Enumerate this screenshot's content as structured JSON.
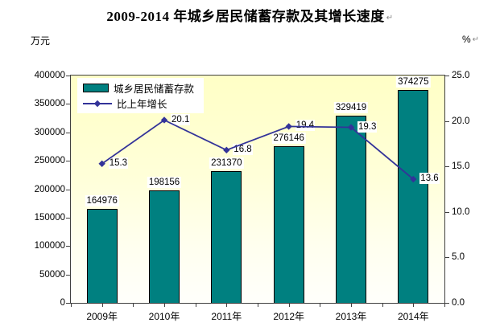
{
  "title": {
    "text": "2009-2014 年城乡居民储蓄存款及其增长速度",
    "return_mark": "↵"
  },
  "units": {
    "left": "万元",
    "right": "%",
    "return_mark": "↵"
  },
  "chart_data": {
    "type": "bar+line combo",
    "categories": [
      "2009年",
      "2010年",
      "2011年",
      "2012年",
      "2013年",
      "2014年"
    ],
    "series": [
      {
        "name": "城乡居民储蓄存款",
        "type": "bar",
        "axis": "left",
        "color": "#008080",
        "values": [
          164976,
          198156,
          231370,
          276146,
          329419,
          374275
        ],
        "labels": [
          "164976",
          "198156",
          "231370",
          "276146",
          "329419",
          "374275"
        ]
      },
      {
        "name": "比上年增长",
        "type": "line",
        "axis": "right",
        "color": "#333399",
        "marker": "diamond",
        "values": [
          15.3,
          20.1,
          16.8,
          19.4,
          19.3,
          13.6
        ],
        "labels": [
          "15.3",
          "20.1",
          "16.8",
          "19.4",
          "19.3",
          "13.6"
        ]
      }
    ],
    "left_axis": {
      "min": 0,
      "max": 400000,
      "step": 50000,
      "ticks": [
        "0",
        "50000",
        "100000",
        "150000",
        "200000",
        "250000",
        "300000",
        "350000",
        "400000"
      ]
    },
    "right_axis": {
      "min": 0,
      "max": 25,
      "step": 5,
      "ticks": [
        "0.0",
        "5.0",
        "10.0",
        "15.0",
        "20.0",
        "25.0"
      ]
    },
    "grid": false,
    "legend_position": "inside-top-left",
    "plot_bg_top": "#ffffc6",
    "plot_bg_bottom": "#fffffb",
    "data_label_bg": "#ffffff"
  }
}
